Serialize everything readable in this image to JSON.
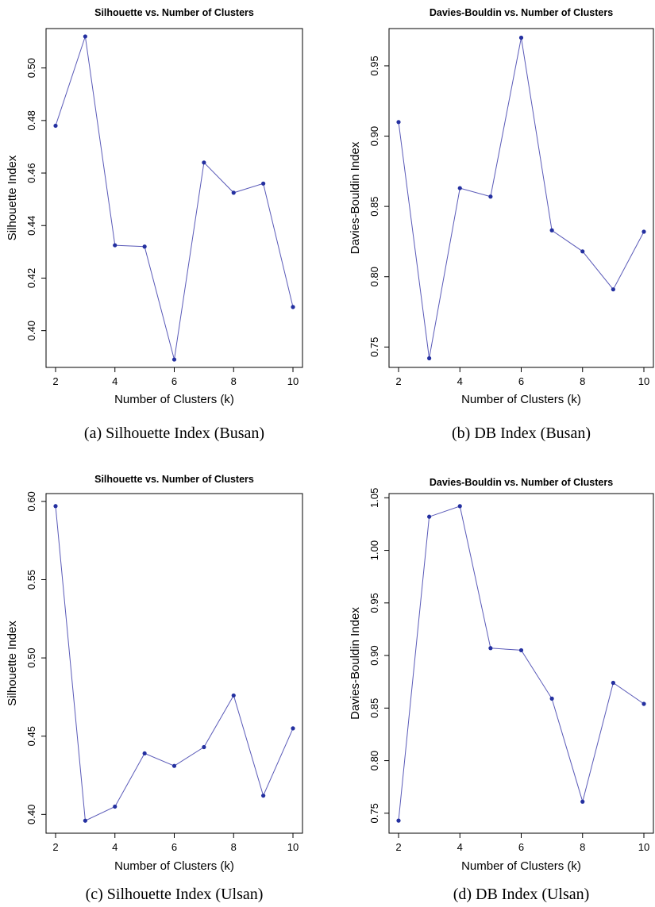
{
  "chart_data": [
    {
      "type": "line",
      "title": "Silhouette vs. Number of Clusters",
      "xlabel": "Number of Clusters (k)",
      "ylabel": "Silhouette Index",
      "caption": "(a) Silhouette Index (Busan)",
      "x": [
        2,
        3,
        4,
        5,
        6,
        7,
        8,
        9,
        10
      ],
      "values": [
        0.478,
        0.512,
        0.4325,
        0.432,
        0.389,
        0.464,
        0.4525,
        0.456,
        0.409
      ],
      "xticks": [
        2,
        4,
        6,
        8,
        10
      ],
      "yticks": [
        0.4,
        0.42,
        0.44,
        0.46,
        0.48,
        0.5
      ],
      "xlim": [
        2,
        10
      ],
      "ylim": [
        0.386,
        0.515
      ],
      "grid": false
    },
    {
      "type": "line",
      "title": "Davies-Bouldin vs. Number of Clusters",
      "xlabel": "Number of Clusters (k)",
      "ylabel": "Davies-Bouldin Index",
      "caption": "(b) DB Index (Busan)",
      "x": [
        2,
        3,
        4,
        5,
        6,
        7,
        8,
        9,
        10
      ],
      "values": [
        0.91,
        0.742,
        0.863,
        0.857,
        0.97,
        0.833,
        0.818,
        0.791,
        0.832
      ],
      "xticks": [
        2,
        4,
        6,
        8,
        10
      ],
      "yticks": [
        0.75,
        0.8,
        0.85,
        0.9,
        0.95
      ],
      "xlim": [
        2,
        10
      ],
      "ylim": [
        0.7355,
        0.9765
      ],
      "grid": false
    },
    {
      "type": "line",
      "title": "Silhouette vs. Number of Clusters",
      "xlabel": "Number of Clusters (k)",
      "ylabel": "Silhouette Index",
      "caption": "(c) Silhouette Index (Ulsan)",
      "x": [
        2,
        3,
        4,
        5,
        6,
        7,
        8,
        9,
        10
      ],
      "values": [
        0.597,
        0.396,
        0.405,
        0.439,
        0.431,
        0.443,
        0.476,
        0.412,
        0.455
      ],
      "xticks": [
        2,
        4,
        6,
        8,
        10
      ],
      "yticks": [
        0.4,
        0.45,
        0.5,
        0.55,
        0.6
      ],
      "xlim": [
        2,
        10
      ],
      "ylim": [
        0.388,
        0.605
      ],
      "grid": false
    },
    {
      "type": "line",
      "title": "Davies-Bouldin vs. Number of Clusters",
      "xlabel": "Number of Clusters (k)",
      "ylabel": "Davies-Bouldin Index",
      "caption": "(d) DB Index (Ulsan)",
      "x": [
        2,
        3,
        4,
        5,
        6,
        7,
        8,
        9,
        10
      ],
      "values": [
        0.743,
        1.032,
        1.042,
        0.907,
        0.905,
        0.859,
        0.761,
        0.874,
        0.854
      ],
      "xticks": [
        2,
        4,
        6,
        8,
        10
      ],
      "yticks": [
        0.75,
        0.8,
        0.85,
        0.9,
        0.95,
        1.0,
        1.05
      ],
      "xlim": [
        2,
        10
      ],
      "ylim": [
        0.731,
        1.054
      ],
      "grid": false
    }
  ]
}
